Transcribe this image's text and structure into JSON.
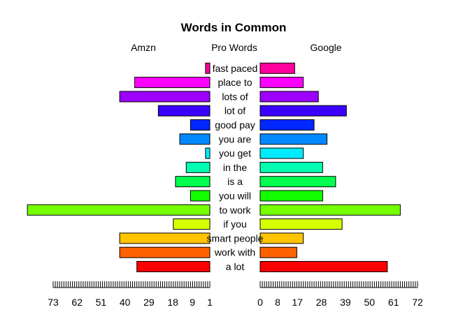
{
  "chart_data": {
    "type": "bar",
    "title": "Words in Common",
    "left_label": "Amzn",
    "center_label": "Pro Words",
    "right_label": "Google",
    "categories": [
      "a lot",
      "work with",
      "smart people",
      "if you",
      "to work",
      "you will",
      "is a",
      "in the",
      "you get",
      "you are",
      "good pay",
      "lot of",
      "lots of",
      "place to",
      "fast paced"
    ],
    "series": [
      {
        "name": "Amzn",
        "values": [
          34,
          42,
          42,
          17,
          85,
          9,
          16,
          11,
          2,
          14,
          9,
          24,
          42,
          35,
          2
        ]
      },
      {
        "name": "Google",
        "values": [
          59,
          17,
          20,
          38,
          65,
          29,
          35,
          29,
          20,
          31,
          25,
          40,
          27,
          20,
          16
        ]
      }
    ],
    "left_ticks": [
      "73",
      "62",
      "51",
      "40",
      "29",
      "18",
      "9",
      "1"
    ],
    "right_ticks": [
      "0",
      "8",
      "17",
      "28",
      "39",
      "50",
      "61",
      "72"
    ],
    "colors": [
      "#FF0000",
      "#FF6200",
      "#FFC400",
      "#D8FF00",
      "#75FF00",
      "#13FF00",
      "#00FF4E",
      "#00FFB1",
      "#00EBFF",
      "#0089FF",
      "#0027FF",
      "#3B00FF",
      "#9D00FF",
      "#FF00FF",
      "#FF009D"
    ],
    "axis_max": 73
  }
}
